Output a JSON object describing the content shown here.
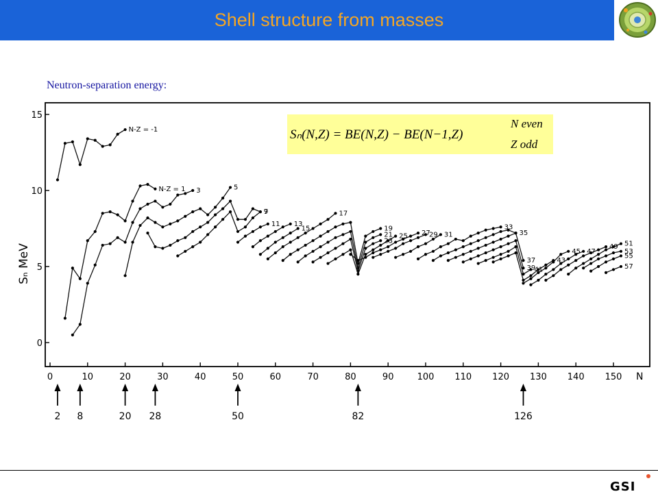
{
  "header": {
    "title": "Shell structure from masses"
  },
  "subtitle": "Neutron-separation energy:",
  "formula": {
    "main": "Sₙ(N,Z) = BE(N,Z) − BE(N−1,Z)",
    "cond1": "N even",
    "cond2": "Z odd"
  },
  "footer": {
    "logo_text": "GSI"
  },
  "colors": {
    "title_bg": "#1a63d8",
    "title_fg": "#f5a623",
    "subtitle": "#1414a0",
    "formula_bg": "#ffff99"
  },
  "chart_data": {
    "type": "line",
    "xlabel": "N",
    "ylabel": "Sₙ  MeV",
    "xlim": [
      0,
      157
    ],
    "ylim": [
      -1,
      16
    ],
    "xticks": [
      0,
      10,
      20,
      30,
      40,
      50,
      60,
      70,
      80,
      90,
      100,
      110,
      120,
      130,
      140,
      150
    ],
    "yticks": [
      0,
      5,
      10,
      15
    ],
    "magic_numbers": [
      2,
      8,
      20,
      28,
      50,
      82,
      126
    ],
    "series": [
      {
        "name": "N-Z = -1",
        "x": [
          2,
          4,
          6,
          8,
          10,
          12,
          14,
          16,
          18,
          20
        ],
        "y": [
          10.7,
          13.1,
          13.2,
          11.7,
          13.4,
          13.3,
          12.9,
          13.0,
          13.7,
          14.0
        ]
      },
      {
        "name": "N-Z = 1",
        "x": [
          4,
          6,
          8,
          10,
          12,
          14,
          16,
          18,
          20,
          22,
          24,
          26,
          28
        ],
        "y": [
          1.6,
          4.9,
          4.2,
          6.7,
          7.3,
          8.5,
          8.6,
          8.4,
          8.0,
          9.3,
          10.3,
          10.4,
          10.1
        ]
      },
      {
        "name": "3",
        "x": [
          6,
          8,
          10,
          12,
          14,
          16,
          18,
          20,
          22,
          24,
          26,
          28,
          30,
          32,
          34,
          36,
          38
        ],
        "y": [
          0.5,
          1.2,
          3.9,
          5.1,
          6.4,
          6.5,
          6.9,
          6.6,
          7.9,
          8.8,
          9.1,
          9.3,
          8.9,
          9.1,
          9.7,
          9.8,
          10.0
        ]
      },
      {
        "name": "5",
        "x": [
          20,
          22,
          24,
          26,
          28,
          30,
          32,
          34,
          36,
          38,
          40,
          42,
          44,
          46,
          48
        ],
        "y": [
          4.4,
          6.6,
          7.7,
          8.2,
          7.9,
          7.6,
          7.8,
          8.0,
          8.3,
          8.6,
          8.8,
          8.4,
          8.9,
          9.5,
          10.2
        ]
      },
      {
        "name": "7",
        "x": [
          26,
          28,
          30,
          32,
          34,
          36,
          38,
          40,
          42,
          44,
          46,
          48,
          50,
          52,
          54,
          56
        ],
        "y": [
          7.2,
          6.3,
          6.2,
          6.4,
          6.7,
          6.9,
          7.3,
          7.6,
          7.9,
          8.4,
          8.8,
          9.3,
          8.1,
          8.1,
          8.8,
          8.6
        ]
      },
      {
        "name": "9",
        "x": [
          34,
          36,
          38,
          40,
          42,
          44,
          46,
          48,
          50,
          52,
          54,
          56
        ],
        "y": [
          5.7,
          6.0,
          6.3,
          6.6,
          7.1,
          7.6,
          8.1,
          8.6,
          7.3,
          7.6,
          8.2,
          8.6
        ]
      },
      {
        "name": "11",
        "x": [
          50,
          52,
          54,
          56,
          58
        ],
        "y": [
          6.6,
          7.0,
          7.3,
          7.6,
          7.8
        ]
      },
      {
        "name": "13",
        "x": [
          54,
          56,
          58,
          60,
          62,
          64
        ],
        "y": [
          6.3,
          6.7,
          7.0,
          7.3,
          7.6,
          7.8
        ]
      },
      {
        "name": "15",
        "x": [
          56,
          58,
          60,
          62,
          64,
          66
        ],
        "y": [
          5.8,
          6.2,
          6.6,
          6.9,
          7.2,
          7.5
        ]
      },
      {
        "name": "17",
        "x": [
          58,
          60,
          62,
          64,
          66,
          68,
          70,
          72,
          74,
          76
        ],
        "y": [
          5.5,
          5.9,
          6.3,
          6.6,
          6.9,
          7.2,
          7.5,
          7.8,
          8.1,
          8.5
        ]
      },
      {
        "name": "19",
        "x": [
          62,
          64,
          66,
          68,
          70,
          72,
          74,
          76,
          78,
          80,
          82,
          84,
          86,
          88
        ],
        "y": [
          5.4,
          5.8,
          6.1,
          6.4,
          6.7,
          7.0,
          7.3,
          7.6,
          7.8,
          7.9,
          5.2,
          7.0,
          7.3,
          7.5
        ]
      },
      {
        "name": "21",
        "x": [
          66,
          68,
          70,
          72,
          74,
          76,
          78,
          80,
          82,
          84,
          86,
          88
        ],
        "y": [
          5.3,
          5.7,
          6.0,
          6.3,
          6.6,
          6.9,
          7.1,
          7.3,
          4.9,
          6.6,
          6.9,
          7.1
        ]
      },
      {
        "name": "23",
        "x": [
          70,
          72,
          74,
          76,
          78,
          80,
          82,
          84,
          86,
          88
        ],
        "y": [
          5.3,
          5.6,
          5.9,
          6.2,
          6.5,
          6.8,
          4.7,
          6.2,
          6.5,
          6.7
        ]
      },
      {
        "name": "25",
        "x": [
          74,
          76,
          78,
          80,
          82,
          84,
          86,
          88,
          90,
          92
        ],
        "y": [
          5.2,
          5.5,
          5.8,
          6.1,
          4.5,
          5.8,
          6.1,
          6.4,
          6.7,
          7.0
        ]
      },
      {
        "name": "27",
        "x": [
          80,
          82,
          84,
          86,
          88,
          90,
          92,
          94,
          96,
          98
        ],
        "y": [
          5.8,
          5.4,
          5.6,
          5.9,
          6.1,
          6.3,
          6.6,
          6.8,
          7.0,
          7.2
        ]
      },
      {
        "name": "29",
        "x": [
          86,
          88,
          90,
          92,
          94,
          96,
          98,
          100
        ],
        "y": [
          5.6,
          5.8,
          6.0,
          6.2,
          6.5,
          6.7,
          6.9,
          7.1
        ]
      },
      {
        "name": "31",
        "x": [
          92,
          94,
          96,
          98,
          100,
          102,
          104
        ],
        "y": [
          5.6,
          5.8,
          6.0,
          6.3,
          6.5,
          6.8,
          7.1
        ]
      },
      {
        "name": "33",
        "x": [
          98,
          100,
          102,
          104,
          106,
          108,
          110,
          112,
          114,
          116,
          118,
          120
        ],
        "y": [
          5.5,
          5.8,
          6.0,
          6.3,
          6.5,
          6.8,
          6.7,
          7.0,
          7.2,
          7.4,
          7.5,
          7.6
        ]
      },
      {
        "name": "35",
        "x": [
          102,
          104,
          106,
          108,
          110,
          112,
          114,
          116,
          118,
          120,
          122,
          124
        ],
        "y": [
          5.4,
          5.7,
          5.9,
          6.1,
          6.3,
          6.5,
          6.7,
          6.9,
          7.1,
          7.3,
          7.4,
          7.2
        ]
      },
      {
        "name": "37",
        "x": [
          106,
          108,
          110,
          112,
          114,
          116,
          118,
          120,
          122,
          124,
          126
        ],
        "y": [
          5.4,
          5.6,
          5.8,
          6.0,
          6.2,
          6.4,
          6.6,
          6.8,
          7.0,
          7.2,
          5.4
        ]
      },
      {
        "name": "39",
        "x": [
          110,
          112,
          114,
          116,
          118,
          120,
          122,
          124,
          126
        ],
        "y": [
          5.3,
          5.5,
          5.7,
          5.9,
          6.1,
          6.3,
          6.5,
          6.7,
          4.9
        ]
      },
      {
        "name": "41",
        "x": [
          114,
          116,
          118,
          120,
          122,
          124,
          126,
          128
        ],
        "y": [
          5.2,
          5.4,
          5.6,
          5.8,
          6.0,
          6.3,
          4.5,
          4.8
        ]
      },
      {
        "name": "43",
        "x": [
          118,
          120,
          122,
          124,
          126,
          128,
          130,
          132,
          134
        ],
        "y": [
          5.3,
          5.5,
          5.7,
          5.9,
          4.1,
          4.4,
          4.8,
          5.1,
          5.4
        ]
      },
      {
        "name": "45",
        "x": [
          126,
          128,
          130,
          132,
          134,
          136,
          138
        ],
        "y": [
          3.9,
          4.2,
          4.6,
          4.9,
          5.3,
          5.8,
          6.0
        ]
      },
      {
        "name": "47",
        "x": [
          128,
          130,
          132,
          134,
          136,
          138,
          140,
          142
        ],
        "y": [
          3.8,
          4.1,
          4.5,
          4.8,
          5.2,
          5.5,
          5.8,
          6.0
        ]
      },
      {
        "name": "49",
        "x": [
          132,
          134,
          136,
          138,
          140,
          142,
          144,
          146,
          148
        ],
        "y": [
          4.1,
          4.4,
          4.8,
          5.1,
          5.4,
          5.7,
          5.9,
          6.1,
          6.3
        ]
      },
      {
        "name": "51",
        "x": [
          138,
          140,
          142,
          144,
          146,
          148,
          150,
          152
        ],
        "y": [
          4.5,
          4.9,
          5.2,
          5.5,
          5.8,
          6.1,
          6.3,
          6.5
        ]
      },
      {
        "name": "53",
        "x": [
          142,
          144,
          146,
          148,
          150,
          152
        ],
        "y": [
          4.9,
          5.2,
          5.5,
          5.7,
          5.9,
          6.0
        ]
      },
      {
        "name": "55",
        "x": [
          144,
          146,
          148,
          150,
          152
        ],
        "y": [
          4.7,
          5.0,
          5.3,
          5.5,
          5.7
        ]
      },
      {
        "name": "57",
        "x": [
          148,
          150,
          152
        ],
        "y": [
          4.6,
          4.8,
          5.0
        ]
      }
    ]
  }
}
